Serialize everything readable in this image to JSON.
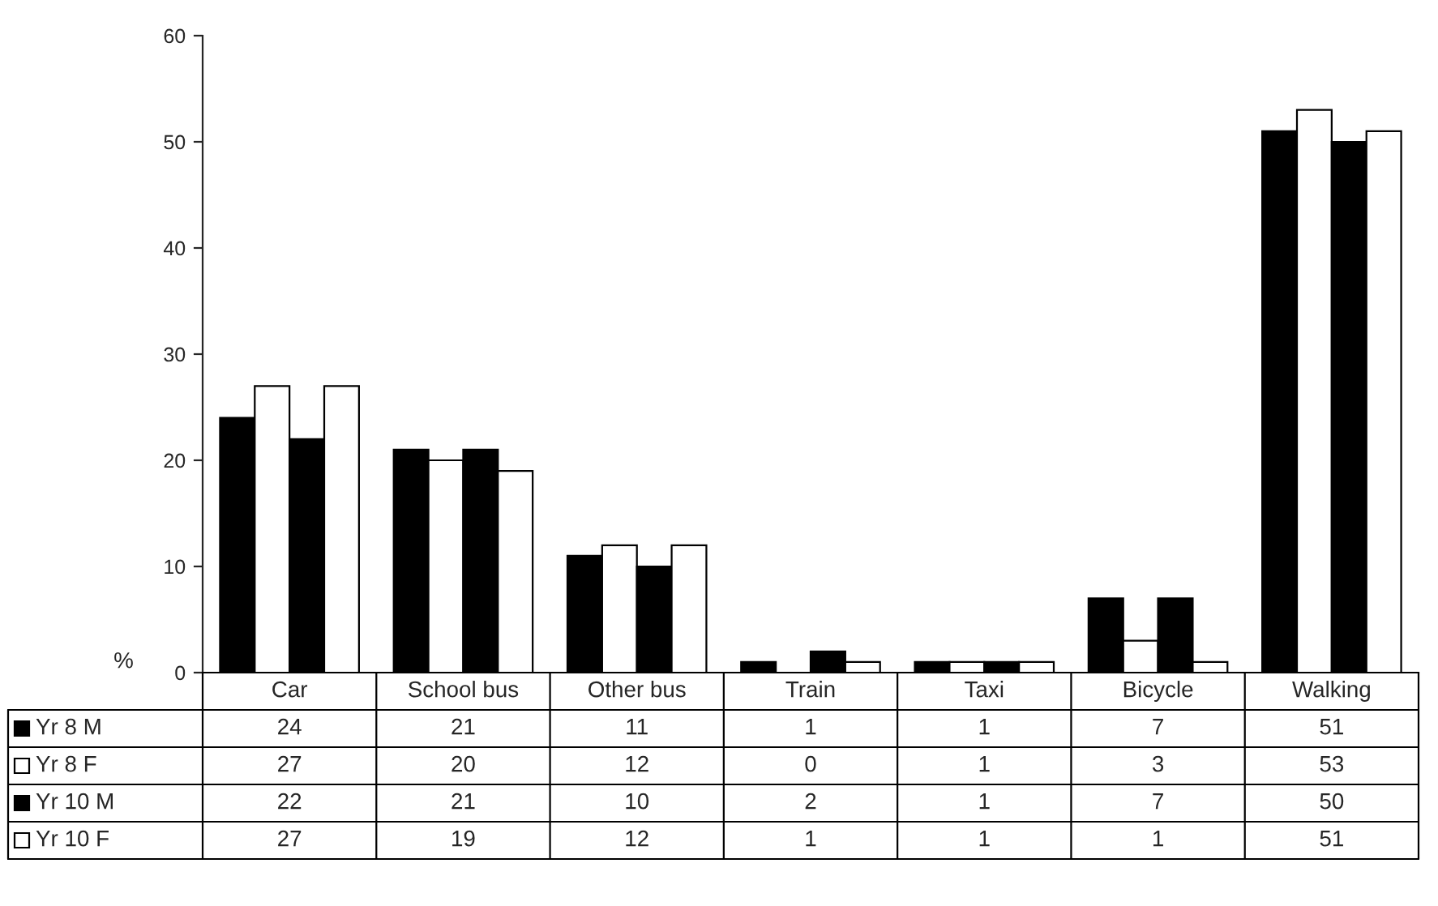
{
  "chart_data": {
    "type": "bar",
    "ylabel": "%",
    "categories": [
      "Car",
      "School bus",
      "Other bus",
      "Train",
      "Taxi",
      "Bicycle",
      "Walking"
    ],
    "series": [
      {
        "name": "Yr 8 M",
        "color": "#000000",
        "values": [
          24,
          21,
          11,
          1,
          1,
          7,
          51
        ]
      },
      {
        "name": "Yr 8 F",
        "color": "#ffffff",
        "values": [
          27,
          20,
          12,
          0,
          1,
          3,
          53
        ]
      },
      {
        "name": "Yr 10 M",
        "color": "#000000",
        "values": [
          22,
          21,
          10,
          2,
          1,
          7,
          50
        ]
      },
      {
        "name": "Yr 10 F",
        "color": "#ffffff",
        "values": [
          27,
          19,
          12,
          1,
          1,
          1,
          51
        ]
      }
    ],
    "ylim": [
      0,
      60
    ],
    "yticks": [
      0,
      10,
      20,
      30,
      40,
      50,
      60
    ],
    "data_labels": true,
    "legend": "bottom"
  }
}
